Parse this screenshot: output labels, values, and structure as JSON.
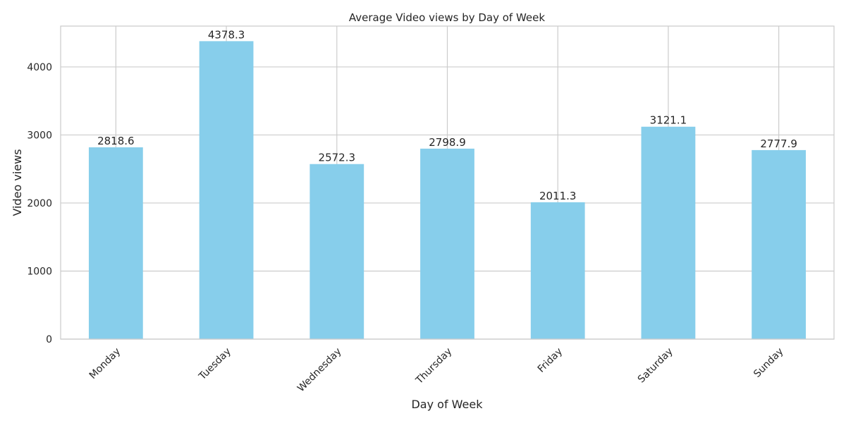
{
  "chart_data": {
    "type": "bar",
    "title": "Average Video views by Day of Week",
    "xlabel": "Day of Week",
    "ylabel": "Video views",
    "categories": [
      "Monday",
      "Tuesday",
      "Wednesday",
      "Thursday",
      "Friday",
      "Saturday",
      "Sunday"
    ],
    "values": [
      2818.6,
      4378.3,
      2572.3,
      2798.9,
      2011.3,
      3121.1,
      2777.9
    ],
    "data_labels": [
      "2818.6",
      "4378.3",
      "2572.3",
      "2798.9",
      "2011.3",
      "3121.1",
      "2777.9"
    ],
    "ylim": [
      0,
      4600
    ],
    "yticks": [
      0,
      1000,
      2000,
      3000,
      4000
    ],
    "ytick_labels": [
      "0",
      "1000",
      "2000",
      "3000",
      "4000"
    ],
    "grid": true,
    "legend": "none",
    "bar_color": "#87ceeb",
    "grid_color": "#cccccc",
    "axes_color": "#cccccc",
    "text_color": "#262626"
  }
}
